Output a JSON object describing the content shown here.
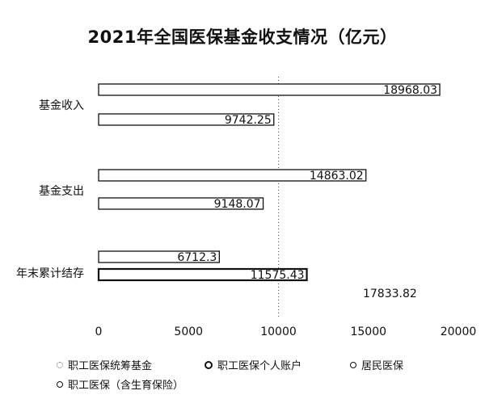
{
  "chart_data": {
    "type": "bar",
    "orientation": "horizontal",
    "title": "2021年全国医保基金收支情况（亿元）",
    "categories": [
      "基金收入",
      "基金支出",
      "年末累计结存"
    ],
    "xlim": [
      0,
      20000
    ],
    "xticks": [
      "0",
      "5000",
      "10000",
      "15000",
      "20000"
    ],
    "grid": "single vertical dashed line at 10000",
    "legend_position": "bottom",
    "series": [
      {
        "name": "职工医保统筹基金",
        "values": [
          null,
          null,
          null
        ],
        "labels": [
          "",
          "",
          ""
        ]
      },
      {
        "name": "职工医保个人账户",
        "values": [
          null,
          null,
          11575.43
        ],
        "labels": [
          "",
          "",
          "11575.43"
        ]
      },
      {
        "name": "居民医保",
        "values": [
          9742.25,
          9148.07,
          6712.3
        ],
        "labels": [
          "9742.25",
          "9148.07",
          "6712.3"
        ]
      },
      {
        "name": "职工医保（含生育保险）",
        "values": [
          18968.03,
          14863.02,
          17833.82
        ],
        "labels": [
          "18968.03",
          "14863.02",
          "17833.82"
        ]
      }
    ]
  }
}
